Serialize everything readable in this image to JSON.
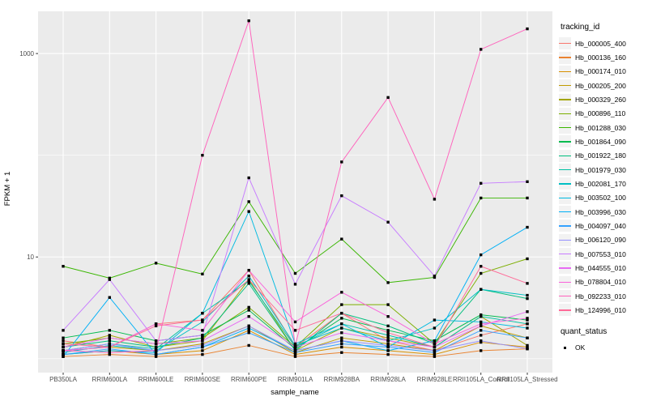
{
  "figure": {
    "legend_titles": {
      "tracking": "tracking_id",
      "quant": "quant_status"
    },
    "colors": {
      "panel_bg": "#EBEBEB",
      "grid": "#FFFFFF",
      "tick_mark": "#333333",
      "tick_text": "#4D4D4D",
      "marker": "#000000",
      "legend_key_bg": "#F2F2F2"
    }
  },
  "chart_data": {
    "type": "line",
    "x_label": "sample_name",
    "y_label": "FPKM + 1",
    "y_scale": "log10",
    "y_ticks": [
      10,
      1000
    ],
    "y_minor_ticks": [
      1,
      100
    ],
    "ylim": [
      0.73,
      2600
    ],
    "grid": true,
    "legend_position": "right",
    "marker": {
      "shape": "square",
      "color": "#000000",
      "label": "OK"
    },
    "categories": [
      "PB350LA",
      "RRIM600LA",
      "RRIM600LE",
      "RRIM600SE",
      "RRIM600PE",
      "RRIM901LA",
      "RRIM928BA",
      "RRIM928LA",
      "RRIM928LE",
      "RRII105LA_Control",
      "RRII105LA_Stressed"
    ],
    "series": [
      {
        "name": "Hb_000005_400",
        "color": "#F8766D",
        "values": [
          1.5,
          1.3,
          2.2,
          2.4,
          7.4,
          1.3,
          2.8,
          1.5,
          1.2,
          1.7,
          2.2
        ]
      },
      {
        "name": "Hb_000136_160",
        "color": "#EA8331",
        "values": [
          1.05,
          1.1,
          1.05,
          1.1,
          1.35,
          1.05,
          1.15,
          1.1,
          1.05,
          1.2,
          1.25
        ]
      },
      {
        "name": "Hb_000174_010",
        "color": "#D89000",
        "values": [
          1.1,
          1.2,
          1.1,
          1.2,
          1.9,
          1.1,
          1.3,
          1.2,
          1.1,
          1.45,
          1.3
        ]
      },
      {
        "name": "Hb_000205_200",
        "color": "#C09B00",
        "values": [
          1.2,
          1.3,
          1.2,
          1.4,
          2.1,
          1.15,
          1.6,
          1.4,
          1.2,
          2.1,
          1.6
        ]
      },
      {
        "name": "Hb_000329_260",
        "color": "#A3A500",
        "values": [
          1.3,
          1.7,
          1.3,
          1.5,
          6.0,
          1.2,
          2.0,
          1.6,
          1.3,
          2.6,
          1.35
        ]
      },
      {
        "name": "Hb_000896_110",
        "color": "#7CAE00",
        "values": [
          1.4,
          1.6,
          1.4,
          1.6,
          3.2,
          1.3,
          3.4,
          3.4,
          1.4,
          6.9,
          9.6
        ]
      },
      {
        "name": "Hb_001288_030",
        "color": "#39B600",
        "values": [
          8.1,
          6.2,
          8.7,
          6.8,
          35,
          6.9,
          15,
          5.6,
          6.3,
          38,
          38
        ]
      },
      {
        "name": "Hb_001864_090",
        "color": "#00BB4E",
        "values": [
          1.6,
          1.9,
          1.5,
          1.7,
          3.0,
          1.25,
          2.5,
          1.9,
          1.5,
          2.7,
          2.4
        ]
      },
      {
        "name": "Hb_001922_180",
        "color": "#00BF7D",
        "values": [
          1.3,
          1.5,
          1.3,
          1.6,
          5.5,
          1.2,
          2.8,
          2.1,
          1.4,
          4.8,
          3.9
        ]
      },
      {
        "name": "Hb_001979_030",
        "color": "#00C1A3",
        "values": [
          1.2,
          1.4,
          1.25,
          2.8,
          5.8,
          1.3,
          2.2,
          1.7,
          1.3,
          2.6,
          2.2
        ]
      },
      {
        "name": "Hb_002081_170",
        "color": "#00BFC4",
        "values": [
          1.15,
          1.35,
          1.2,
          2.3,
          6.5,
          1.35,
          2.0,
          1.5,
          2.0,
          4.8,
          4.2
        ]
      },
      {
        "name": "Hb_003502_100",
        "color": "#00BAE0",
        "values": [
          1.1,
          1.2,
          1.15,
          2.8,
          28,
          1.4,
          2.2,
          1.3,
          2.4,
          2.3,
          2.0
        ]
      },
      {
        "name": "Hb_003996_030",
        "color": "#00B0F6",
        "values": [
          1.05,
          4.0,
          1.1,
          1.3,
          2.0,
          1.2,
          1.5,
          1.2,
          1.5,
          10.5,
          19.6
        ]
      },
      {
        "name": "Hb_004097_040",
        "color": "#35A2FF",
        "values": [
          1.1,
          1.25,
          1.1,
          1.3,
          1.8,
          1.15,
          1.4,
          1.3,
          1.15,
          1.9,
          1.6
        ]
      },
      {
        "name": "Hb_006120_090",
        "color": "#9590FF",
        "values": [
          1.2,
          1.4,
          1.2,
          1.35,
          2.1,
          1.2,
          1.5,
          1.35,
          1.2,
          1.5,
          1.25
        ]
      },
      {
        "name": "Hb_007553_010",
        "color": "#C77CFF",
        "values": [
          1.9,
          6.0,
          1.5,
          1.7,
          60,
          5.4,
          40,
          22,
          6.5,
          53,
          55
        ]
      },
      {
        "name": "Hb_044555_010",
        "color": "#E76BF3",
        "values": [
          1.3,
          1.6,
          1.4,
          1.5,
          2.6,
          1.3,
          1.8,
          1.5,
          1.3,
          2.1,
          2.9
        ]
      },
      {
        "name": "Hb_078804_010",
        "color": "#FA62DB",
        "values": [
          1.2,
          1.3,
          2.2,
          1.9,
          7.4,
          2.3,
          4.5,
          2.6,
          1.4,
          2.2,
          2.5
        ]
      },
      {
        "name": "Hb_092233_010",
        "color": "#FF62BC",
        "values": [
          1.2,
          1.15,
          1.2,
          100,
          2100,
          1.35,
          86,
          370,
          37,
          1100,
          1750
        ]
      },
      {
        "name": "Hb_124996_010",
        "color": "#FF6A98",
        "values": [
          1.4,
          1.3,
          2.1,
          2.4,
          6.0,
          1.9,
          2.8,
          1.8,
          1.3,
          8.1,
          5.5
        ]
      }
    ]
  }
}
